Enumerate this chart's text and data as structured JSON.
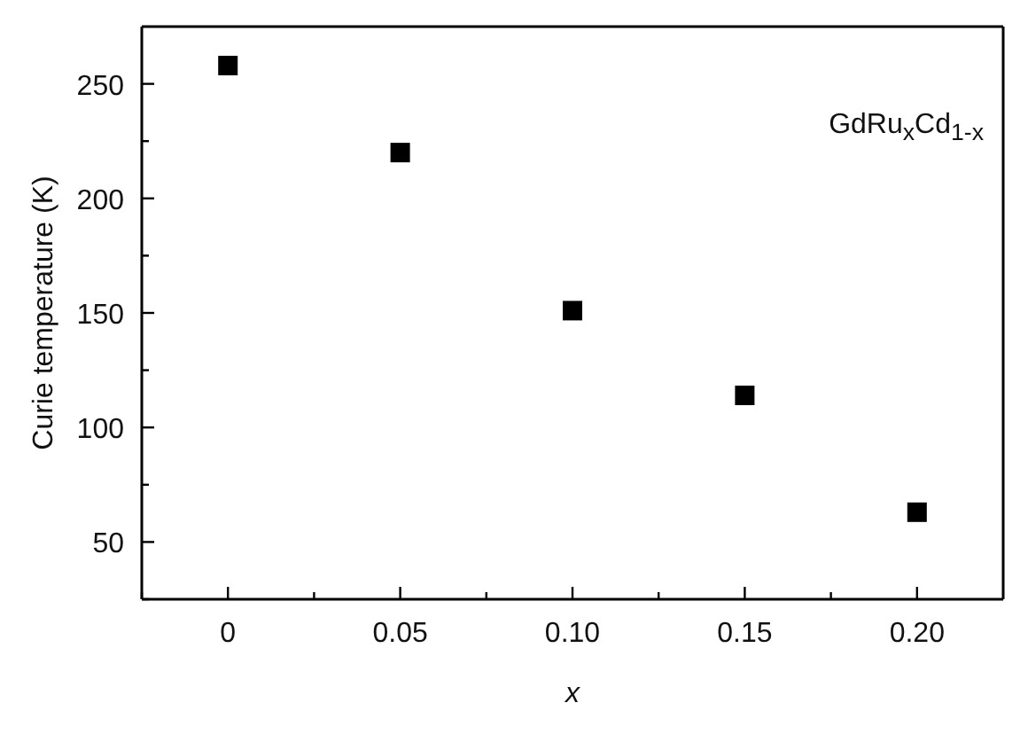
{
  "chart_data": {
    "type": "scatter",
    "xlabel": "x",
    "ylabel": "Curie temperature (K)",
    "annotations": [
      "GdRu$_{x}$Cd$_{1-x}$"
    ],
    "x": [
      0,
      0.05,
      0.1,
      0.15,
      0.2
    ],
    "series": [
      {
        "color": "#000000",
        "values": [
          258,
          220,
          151,
          114,
          63
        ]
      }
    ],
    "marker": "square",
    "xlim": [
      -0.025,
      0.225
    ],
    "xticks": [
      {
        "value": -0.025,
        "label": null
      },
      0,
      {
        "value": 0.025,
        "label": null
      },
      0.05,
      {
        "value": 0.075,
        "label": null
      },
      {
        "value": 0.1,
        "label": "0.10"
      },
      {
        "value": 0.125,
        "label": null
      },
      0.15,
      {
        "value": 0.175,
        "label": null
      },
      {
        "value": 0.2,
        "label": "0.20"
      }
    ],
    "ylim": [
      25,
      275
    ],
    "yticks": [
      {
        "value": 25,
        "label": null
      },
      50,
      {
        "value": 75,
        "label": null
      },
      100,
      {
        "value": 125,
        "label": null
      },
      150,
      {
        "value": 175,
        "label": null
      },
      200,
      {
        "value": 225,
        "label": null
      },
      250
    ],
    "grid": false,
    "legend": false
  }
}
